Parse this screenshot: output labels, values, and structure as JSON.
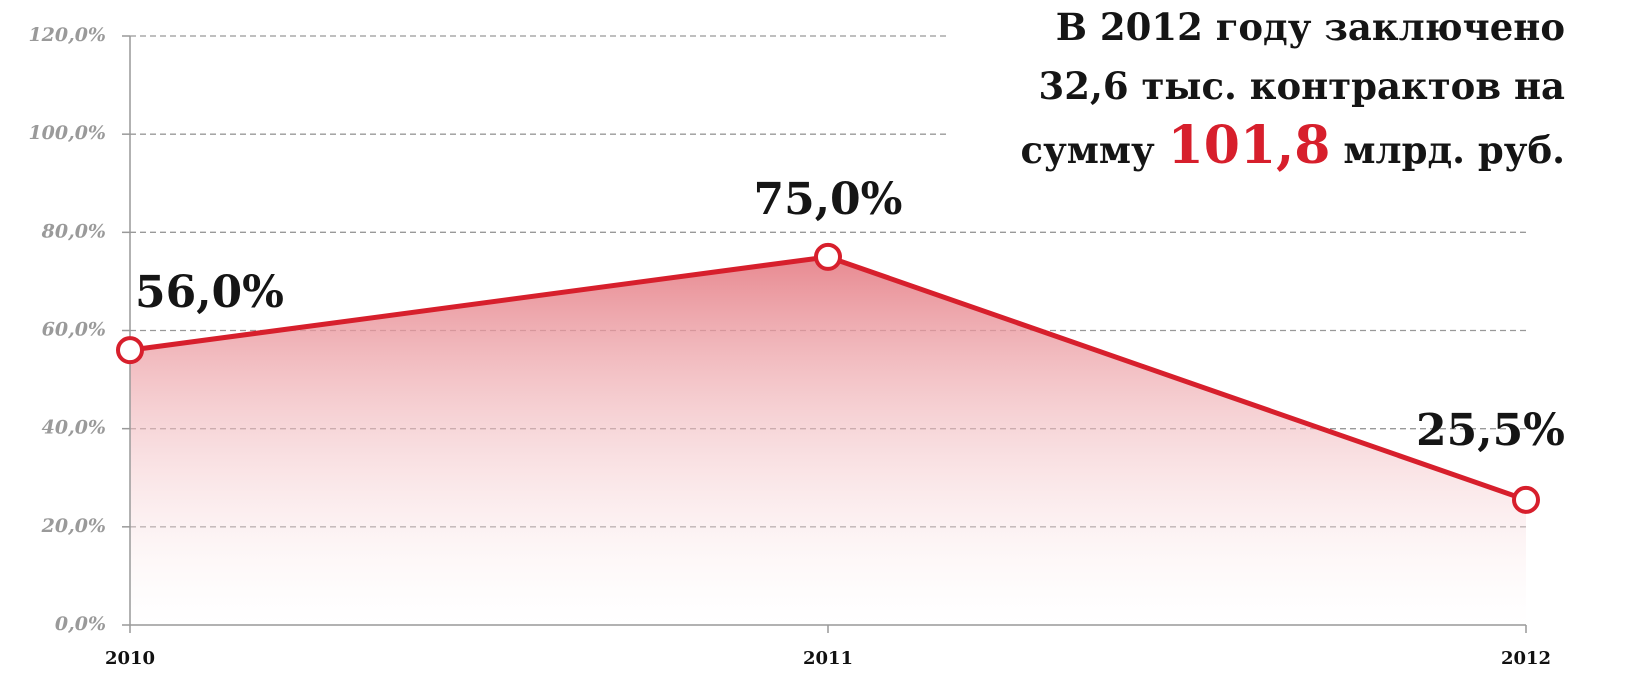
{
  "chart_data": {
    "type": "area",
    "categories": [
      "2010",
      "2011",
      "2012"
    ],
    "values": [
      56,
      75,
      25.5
    ],
    "value_labels": [
      "56,0%",
      "75,0%",
      "25,5%"
    ],
    "color": "#d71f2c",
    "ylim": [
      0,
      120
    ],
    "yticks": [
      {
        "value": 0,
        "label": "0,0%"
      },
      {
        "value": 20,
        "label": "20,0%"
      },
      {
        "value": 40,
        "label": "40,0%"
      },
      {
        "value": 60,
        "label": "60,0%"
      },
      {
        "value": 80,
        "label": "80,0%"
      },
      {
        "value": 100,
        "label": "100,0%"
      },
      {
        "value": 120,
        "label": "120,0%"
      }
    ],
    "grid": true,
    "annotation": [
      "В 2012 году заключено",
      "32,6 тыс. контрактов на",
      "сумму",
      "101,8",
      "млрд. руб."
    ]
  }
}
